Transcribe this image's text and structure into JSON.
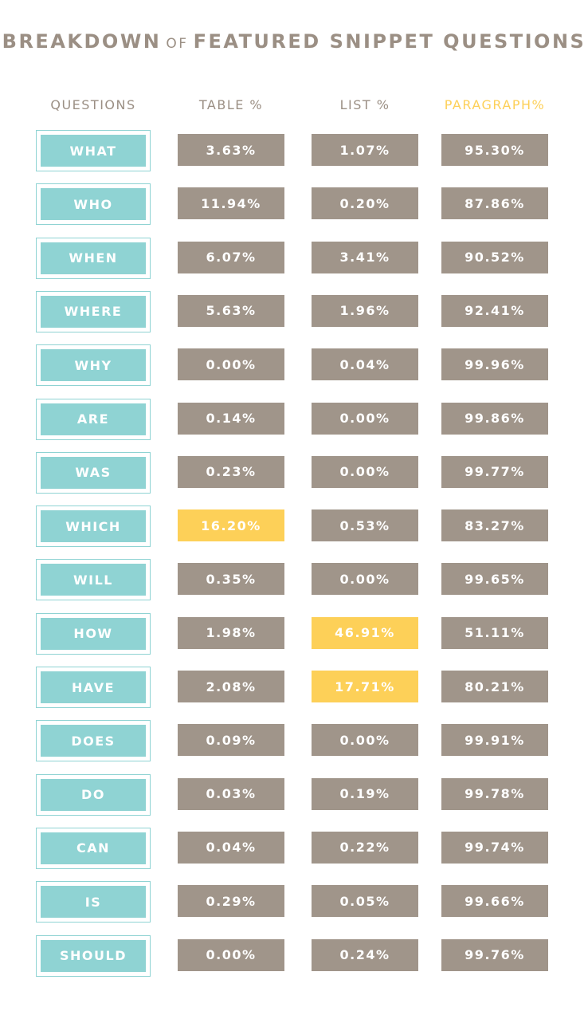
{
  "title": {
    "parts": [
      "BREAKDOWN",
      "OF",
      "FEATURED SNIPPET QUESTIONS"
    ],
    "color": "#9b8f84"
  },
  "table": {
    "headers": [
      {
        "text": "QUESTIONS",
        "color": "#9b8f84"
      },
      {
        "text": "TABLE %",
        "color": "#9b8f84"
      },
      {
        "text": "LIST %",
        "color": "#9b8f84"
      },
      {
        "text": "PARAGRAPH%",
        "color": "#fdd058"
      }
    ],
    "question_color": "#8fd3d3",
    "rows": [
      {
        "question": "WHAT",
        "cells": [
          "3.63%",
          "1.07%",
          "95.30%"
        ],
        "colors": [
          "#a0958a",
          "#a0958a",
          "#a0958a"
        ]
      },
      {
        "question": "WHO",
        "cells": [
          "11.94%",
          "0.20%",
          "87.86%"
        ],
        "colors": [
          "#a0958a",
          "#a0958a",
          "#a0958a"
        ]
      },
      {
        "question": "WHEN",
        "cells": [
          "6.07%",
          "3.41%",
          "90.52%"
        ],
        "colors": [
          "#a0958a",
          "#a0958a",
          "#a0958a"
        ]
      },
      {
        "question": "WHERE",
        "cells": [
          "5.63%",
          "1.96%",
          "92.41%"
        ],
        "colors": [
          "#a0958a",
          "#a0958a",
          "#a0958a"
        ]
      },
      {
        "question": "WHY",
        "cells": [
          "0.00%",
          "0.04%",
          "99.96%"
        ],
        "colors": [
          "#a0958a",
          "#a0958a",
          "#a0958a"
        ]
      },
      {
        "question": "ARE",
        "cells": [
          "0.14%",
          "0.00%",
          "99.86%"
        ],
        "colors": [
          "#a0958a",
          "#a0958a",
          "#a0958a"
        ]
      },
      {
        "question": "WAS",
        "cells": [
          "0.23%",
          "0.00%",
          "99.77%"
        ],
        "colors": [
          "#a0958a",
          "#a0958a",
          "#a0958a"
        ]
      },
      {
        "question": "WHICH",
        "cells": [
          "16.20%",
          "0.53%",
          "83.27%"
        ],
        "colors": [
          "#fdd058",
          "#a0958a",
          "#a0958a"
        ]
      },
      {
        "question": "WILL",
        "cells": [
          "0.35%",
          "0.00%",
          "99.65%"
        ],
        "colors": [
          "#a0958a",
          "#a0958a",
          "#a0958a"
        ]
      },
      {
        "question": "HOW",
        "cells": [
          "1.98%",
          "46.91%",
          "51.11%"
        ],
        "colors": [
          "#a0958a",
          "#fdd058",
          "#a0958a"
        ]
      },
      {
        "question": "HAVE",
        "cells": [
          "2.08%",
          "17.71%",
          "80.21%"
        ],
        "colors": [
          "#a0958a",
          "#fdd058",
          "#a0958a"
        ]
      },
      {
        "question": "DOES",
        "cells": [
          "0.09%",
          "0.00%",
          "99.91%"
        ],
        "colors": [
          "#a0958a",
          "#a0958a",
          "#a0958a"
        ]
      },
      {
        "question": "DO",
        "cells": [
          "0.03%",
          "0.19%",
          "99.78%"
        ],
        "colors": [
          "#a0958a",
          "#a0958a",
          "#a0958a"
        ]
      },
      {
        "question": "CAN",
        "cells": [
          "0.04%",
          "0.22%",
          "99.74%"
        ],
        "colors": [
          "#a0958a",
          "#a0958a",
          "#a0958a"
        ]
      },
      {
        "question": "IS",
        "cells": [
          "0.29%",
          "0.05%",
          "99.66%"
        ],
        "colors": [
          "#a0958a",
          "#a0958a",
          "#a0958a"
        ]
      },
      {
        "question": "SHOULD",
        "cells": [
          "0.00%",
          "0.24%",
          "99.76%"
        ],
        "colors": [
          "#a0958a",
          "#a0958a",
          "#a0958a"
        ]
      }
    ]
  }
}
